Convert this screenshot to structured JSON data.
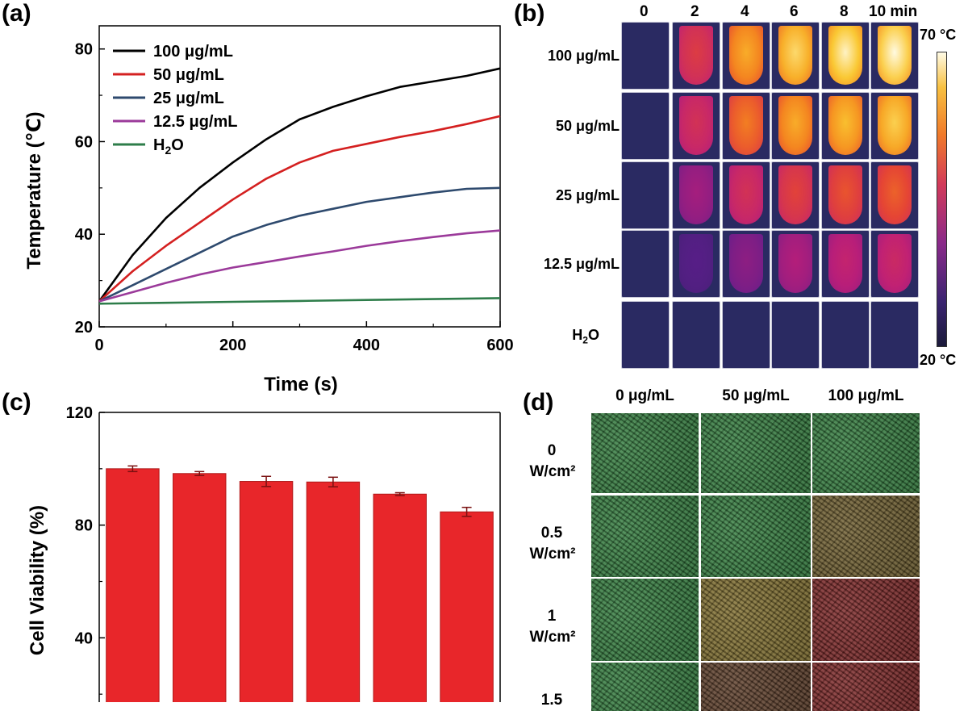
{
  "panels": {
    "a": "(a)",
    "b": "(b)",
    "c": "(c)",
    "d": "(d)"
  },
  "chart_data": [
    {
      "type": "line",
      "panel": "a",
      "xlabel": "Time (s)",
      "ylabel": "Temperature (℃)",
      "xlim": [
        0,
        600
      ],
      "ylim": [
        20,
        85
      ],
      "xticks": [
        "0",
        "200",
        "400",
        "600"
      ],
      "yticks": [
        "20",
        "40",
        "60",
        "80"
      ],
      "grid": false,
      "legend_position": "top-left",
      "series": [
        {
          "name": "100  μg/mL",
          "color": "#000000",
          "x": [
            0,
            50,
            100,
            150,
            200,
            250,
            300,
            350,
            400,
            450,
            500,
            550,
            600
          ],
          "y": [
            25.5,
            35.5,
            43.5,
            50,
            55.5,
            60.5,
            64.8,
            67.5,
            69.8,
            71.8,
            73,
            74.2,
            75.8
          ]
        },
        {
          "name": "50   μg/mL",
          "color": "#d42020",
          "x": [
            0,
            50,
            100,
            150,
            200,
            250,
            300,
            350,
            400,
            450,
            500,
            550,
            600
          ],
          "y": [
            25.5,
            32,
            37.5,
            42.5,
            47.5,
            52,
            55.5,
            58,
            59.5,
            61,
            62.3,
            63.8,
            65.5
          ]
        },
        {
          "name": "25   μg/mL",
          "color": "#2e4a6e",
          "x": [
            0,
            50,
            100,
            150,
            200,
            250,
            300,
            350,
            400,
            450,
            500,
            550,
            600
          ],
          "y": [
            25.5,
            29,
            32.5,
            36,
            39.5,
            42,
            44,
            45.5,
            47,
            48,
            49,
            49.8,
            50
          ]
        },
        {
          "name": "12.5 μg/mL",
          "color": "#9b3a9a",
          "x": [
            0,
            50,
            100,
            150,
            200,
            250,
            300,
            350,
            400,
            450,
            500,
            550,
            600
          ],
          "y": [
            25.5,
            27.5,
            29.5,
            31.3,
            32.8,
            34,
            35.2,
            36.3,
            37.5,
            38.5,
            39.4,
            40.2,
            40.8
          ]
        },
        {
          "name": "H2O",
          "color": "#2e7d4a",
          "x": [
            0,
            100,
            200,
            300,
            400,
            500,
            600
          ],
          "y": [
            25,
            25.2,
            25.4,
            25.6,
            25.8,
            26,
            26.2
          ]
        }
      ]
    },
    {
      "type": "bar",
      "panel": "c",
      "ylabel": "Cell Viability (%)",
      "ylim": [
        0,
        120
      ],
      "yticks": [
        "40",
        "80",
        "120"
      ],
      "color": "#e8262a",
      "values": [
        100,
        98.3,
        95.5,
        95.3,
        91,
        84.7
      ],
      "errors": [
        1,
        0.7,
        1.8,
        1.7,
        0.5,
        1.6
      ]
    }
  ],
  "thermal": {
    "columns": [
      "0",
      "2",
      "4",
      "6",
      "8",
      "10 min"
    ],
    "rows": [
      {
        "label": "100 μg/mL",
        "levels": [
          0,
          0.55,
          0.82,
          0.92,
          0.98,
          1.0
        ]
      },
      {
        "label": "50 μg/mL",
        "levels": [
          0,
          0.5,
          0.72,
          0.82,
          0.86,
          0.9
        ]
      },
      {
        "label": "25 μg/mL",
        "levels": [
          0,
          0.35,
          0.5,
          0.58,
          0.63,
          0.66
        ]
      },
      {
        "label": "12.5 μg/mL",
        "levels": [
          0,
          0.18,
          0.3,
          0.38,
          0.43,
          0.46
        ]
      },
      {
        "label": "H2O",
        "levels": [
          0,
          0,
          0,
          0,
          0,
          0
        ]
      }
    ],
    "scale_max": "70 °C",
    "scale_min": "20 °C"
  },
  "fluorescence": {
    "columns": [
      "0 μg/mL",
      "50 μg/mL",
      "100 μg/mL"
    ],
    "rows": [
      {
        "label_top": "0",
        "label_bottom": "W/cm²",
        "cells": [
          "green",
          "green",
          "green"
        ]
      },
      {
        "label_top": "0.5",
        "label_bottom": "W/cm²",
        "cells": [
          "green",
          "green",
          "olive"
        ]
      },
      {
        "label_top": "1",
        "label_bottom": "W/cm²",
        "cells": [
          "green",
          "yellow",
          "red"
        ]
      },
      {
        "label_top": "1.5",
        "label_bottom": "",
        "cells": [
          "green",
          "brown",
          "red"
        ]
      }
    ],
    "colors": {
      "green": "#2f7a3a",
      "olive": "#6b5a2a",
      "yellow": "#7d6b2a",
      "brown": "#5a3a25",
      "red": "#7a2222"
    }
  }
}
